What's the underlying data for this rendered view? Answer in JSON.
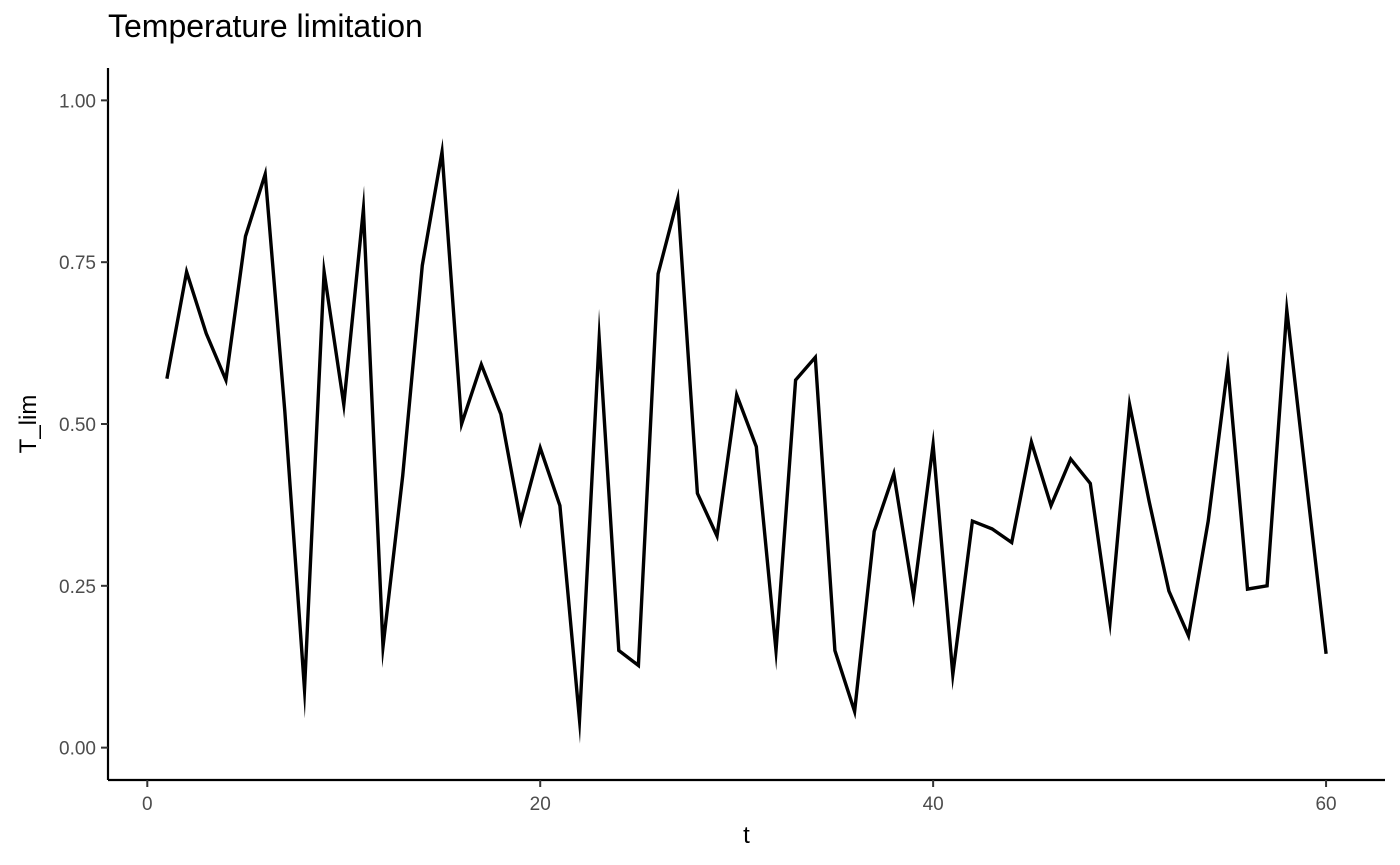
{
  "chart_data": {
    "type": "line",
    "title": "Temperature limitation",
    "xlabel": "t",
    "ylabel": "T_lim",
    "xlim": [
      -2,
      63
    ],
    "ylim": [
      -0.05,
      1.05
    ],
    "xticks": [
      0,
      20,
      40,
      60
    ],
    "xtick_labels": [
      "0",
      "20",
      "40",
      "60"
    ],
    "yticks": [
      0,
      0.25,
      0.5,
      0.75,
      1.0
    ],
    "ytick_labels": [
      "0.00",
      "0.25",
      "0.50",
      "0.75",
      "1.00"
    ],
    "grid": false,
    "line_color": "#000000",
    "x": [
      1,
      2,
      3,
      4,
      5,
      6,
      7,
      8,
      9,
      10,
      11,
      12,
      13,
      14,
      15,
      16,
      17,
      18,
      19,
      20,
      21,
      22,
      23,
      24,
      25,
      26,
      27,
      28,
      29,
      30,
      31,
      32,
      33,
      34,
      35,
      36,
      37,
      38,
      39,
      40,
      41,
      42,
      43,
      44,
      45,
      46,
      47,
      48,
      49,
      50,
      51,
      52,
      53,
      54,
      55,
      56,
      57,
      58,
      59,
      60
    ],
    "y": [
      0.57,
      0.735,
      0.64,
      0.568,
      0.79,
      0.886,
      0.52,
      0.09,
      0.735,
      0.53,
      0.832,
      0.156,
      0.42,
      0.745,
      0.92,
      0.5,
      0.592,
      0.515,
      0.35,
      0.463,
      0.374,
      0.043,
      0.632,
      0.15,
      0.127,
      0.732,
      0.848,
      0.393,
      0.327,
      0.545,
      0.465,
      0.15,
      0.568,
      0.603,
      0.15,
      0.056,
      0.334,
      0.423,
      0.234,
      0.468,
      0.113,
      0.35,
      0.338,
      0.317,
      0.472,
      0.374,
      0.446,
      0.408,
      0.194,
      0.53,
      0.38,
      0.242,
      0.173,
      0.35,
      0.589,
      0.245,
      0.25,
      0.676,
      0.41,
      0.145
    ]
  }
}
